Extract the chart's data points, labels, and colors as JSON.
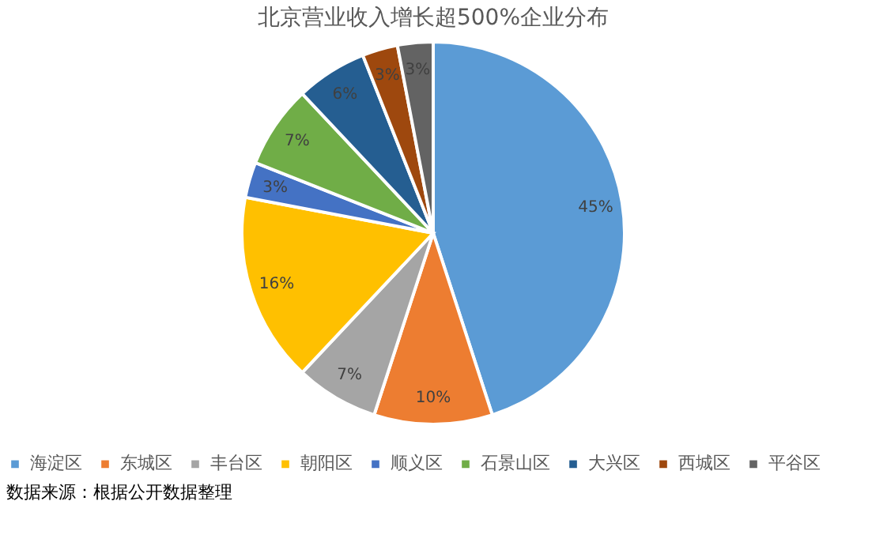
{
  "chart_data": {
    "type": "pie",
    "title": "北京营业收入增长超500%企业分布",
    "categories": [
      "海淀区",
      "东城区",
      "丰台区",
      "朝阳区",
      "顺义区",
      "石景山区",
      "大兴区",
      "西城区",
      "平谷区"
    ],
    "values": [
      45,
      10,
      7,
      16,
      3,
      7,
      6,
      3,
      3
    ],
    "colors": [
      "#5b9bd5",
      "#ed7d31",
      "#a5a5a5",
      "#ffc000",
      "#4472c4",
      "#70ad47",
      "#255e91",
      "#9e480e",
      "#636363"
    ],
    "value_labels": [
      "45%",
      "10%",
      "7%",
      "16%",
      "3%",
      "7%",
      "6%",
      "3%",
      "3%"
    ],
    "legend": "bottom",
    "annotations": [
      "数据来源：根据公开数据整理"
    ]
  }
}
